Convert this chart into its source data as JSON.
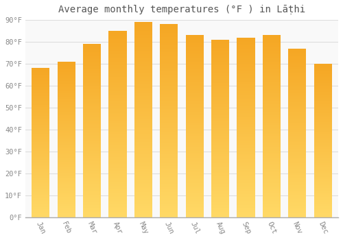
{
  "title": "Average monthly temperatures (°F ) in Lāṭhi",
  "months": [
    "Jan",
    "Feb",
    "Mar",
    "Apr",
    "May",
    "Jun",
    "Jul",
    "Aug",
    "Sep",
    "Oct",
    "Nov",
    "Dec"
  ],
  "values": [
    68,
    71,
    79,
    85,
    89,
    88,
    83,
    81,
    82,
    83,
    77,
    70
  ],
  "ylim": [
    0,
    90
  ],
  "yticks": [
    0,
    10,
    20,
    30,
    40,
    50,
    60,
    70,
    80,
    90
  ],
  "bar_color_top": "#F5A623",
  "bar_color_bottom": "#FFD966",
  "background_color": "#ffffff",
  "plot_bg_color": "#f9f9f9",
  "grid_color": "#dddddd",
  "text_color": "#888888",
  "title_color": "#555555",
  "title_fontsize": 10,
  "tick_fontsize": 7.5,
  "bar_width": 0.7,
  "n_gradient_segments": 200
}
